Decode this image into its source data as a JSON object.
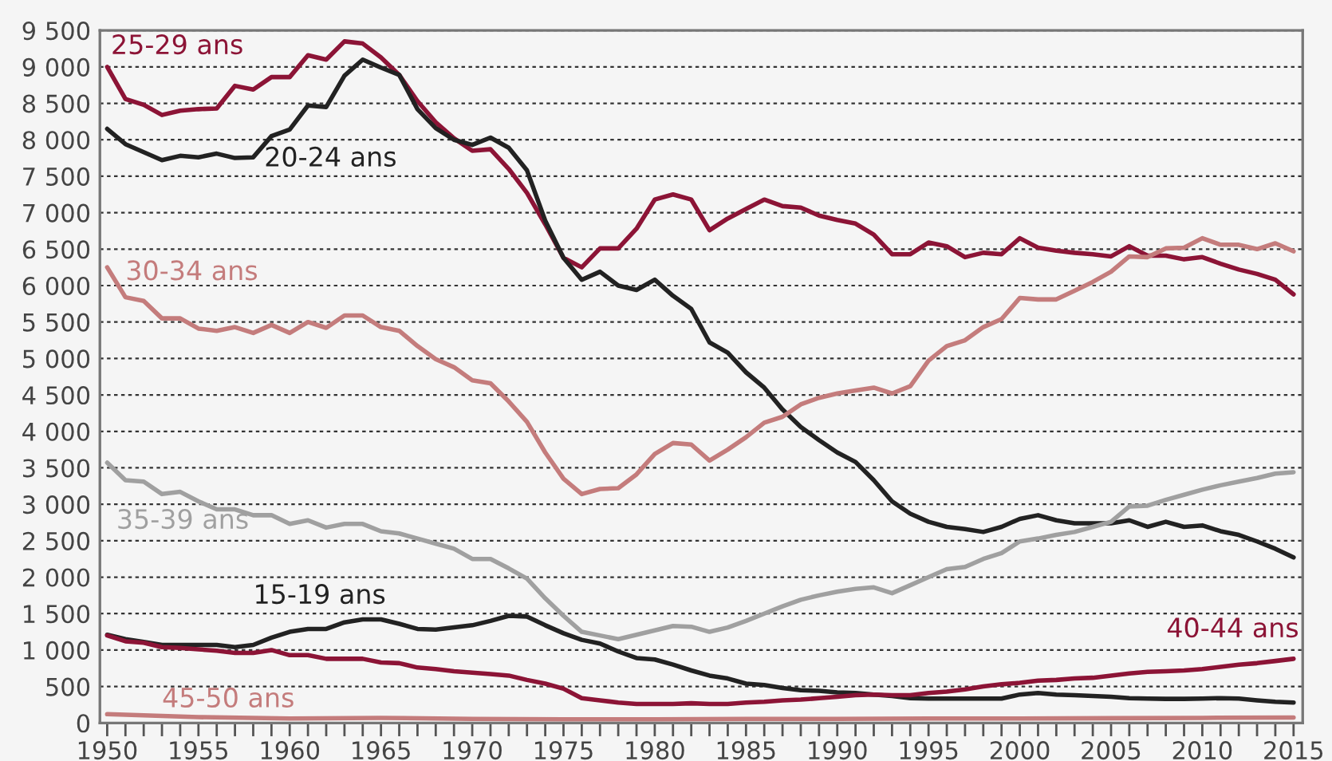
{
  "chart_data": {
    "type": "line",
    "x": [
      1950,
      1951,
      1952,
      1953,
      1954,
      1955,
      1956,
      1957,
      1958,
      1959,
      1960,
      1961,
      1962,
      1963,
      1964,
      1965,
      1966,
      1967,
      1968,
      1969,
      1970,
      1971,
      1972,
      1973,
      1974,
      1975,
      1976,
      1977,
      1978,
      1979,
      1980,
      1981,
      1982,
      1983,
      1984,
      1985,
      1986,
      1987,
      1988,
      1989,
      1990,
      1991,
      1992,
      1993,
      1994,
      1995,
      1996,
      1997,
      1998,
      1999,
      2000,
      2001,
      2002,
      2003,
      2004,
      2005,
      2006,
      2007,
      2008,
      2009,
      2010,
      2011,
      2012,
      2013,
      2014,
      2015
    ],
    "series": [
      {
        "name": "25-29 ans",
        "color": "#8c1436",
        "values": [
          9000,
          8560,
          8480,
          8340,
          8400,
          8420,
          8430,
          8740,
          8690,
          8860,
          8860,
          9160,
          9100,
          9350,
          9320,
          9130,
          8890,
          8530,
          8240,
          8020,
          7850,
          7870,
          7600,
          7270,
          6840,
          6380,
          6250,
          6510,
          6510,
          6780,
          7180,
          7250,
          7180,
          6760,
          6920,
          7050,
          7180,
          7090,
          7070,
          6960,
          6900,
          6850,
          6700,
          6430,
          6430,
          6590,
          6540,
          6390,
          6450,
          6430,
          6650,
          6520,
          6480,
          6450,
          6430,
          6400,
          6540,
          6410,
          6410,
          6360,
          6390,
          6300,
          6220,
          6160,
          6080,
          5880
        ]
      },
      {
        "name": "20-24 ans",
        "color": "#222222",
        "values": [
          8150,
          7940,
          7830,
          7720,
          7780,
          7760,
          7810,
          7750,
          7760,
          8050,
          8140,
          8470,
          8450,
          8880,
          9100,
          8990,
          8890,
          8420,
          8160,
          8000,
          7930,
          8030,
          7890,
          7580,
          6890,
          6380,
          6080,
          6190,
          6000,
          5940,
          6080,
          5860,
          5680,
          5220,
          5080,
          4810,
          4600,
          4300,
          4060,
          3880,
          3710,
          3580,
          3330,
          3040,
          2870,
          2760,
          2690,
          2660,
          2620,
          2690,
          2800,
          2850,
          2780,
          2740,
          2740,
          2740,
          2780,
          2690,
          2760,
          2690,
          2710,
          2630,
          2580,
          2490,
          2390,
          2270
        ]
      },
      {
        "name": "30-34 ans",
        "color": "#c47c7c",
        "values": [
          6250,
          5840,
          5790,
          5550,
          5550,
          5410,
          5380,
          5430,
          5350,
          5460,
          5350,
          5500,
          5420,
          5590,
          5590,
          5430,
          5380,
          5170,
          4990,
          4880,
          4700,
          4660,
          4410,
          4130,
          3710,
          3350,
          3140,
          3210,
          3220,
          3410,
          3690,
          3840,
          3820,
          3600,
          3750,
          3920,
          4120,
          4200,
          4370,
          4460,
          4520,
          4560,
          4600,
          4520,
          4620,
          4970,
          5170,
          5250,
          5430,
          5540,
          5830,
          5810,
          5810,
          5930,
          6050,
          6190,
          6400,
          6390,
          6510,
          6520,
          6650,
          6560,
          6560,
          6500,
          6580,
          6470
        ]
      },
      {
        "name": "35-39 ans",
        "color": "#a0a0a0",
        "values": [
          3570,
          3330,
          3310,
          3140,
          3170,
          3040,
          2930,
          2930,
          2850,
          2850,
          2730,
          2780,
          2680,
          2730,
          2730,
          2630,
          2600,
          2530,
          2460,
          2390,
          2250,
          2250,
          2120,
          1980,
          1710,
          1470,
          1250,
          1200,
          1150,
          1210,
          1270,
          1330,
          1320,
          1250,
          1310,
          1400,
          1500,
          1600,
          1690,
          1750,
          1800,
          1840,
          1860,
          1780,
          1890,
          2000,
          2110,
          2140,
          2250,
          2330,
          2490,
          2530,
          2580,
          2620,
          2690,
          2760,
          2970,
          2980,
          3060,
          3130,
          3200,
          3260,
          3310,
          3360,
          3420,
          3440
        ]
      },
      {
        "name": "15-19 ans",
        "color": "#222222",
        "values": [
          1210,
          1150,
          1110,
          1070,
          1070,
          1070,
          1070,
          1040,
          1070,
          1170,
          1250,
          1290,
          1290,
          1380,
          1420,
          1420,
          1360,
          1290,
          1280,
          1310,
          1340,
          1400,
          1470,
          1460,
          1340,
          1230,
          1140,
          1090,
          980,
          890,
          870,
          800,
          720,
          650,
          610,
          540,
          520,
          480,
          450,
          440,
          420,
          410,
          390,
          370,
          340,
          335,
          335,
          335,
          335,
          335,
          390,
          410,
          390,
          380,
          370,
          360,
          340,
          335,
          330,
          330,
          335,
          340,
          335,
          310,
          290,
          280
        ]
      },
      {
        "name": "40-44 ans",
        "color": "#8c1436",
        "values": [
          1200,
          1120,
          1100,
          1040,
          1030,
          1010,
          990,
          960,
          960,
          1000,
          930,
          930,
          880,
          880,
          880,
          830,
          820,
          760,
          740,
          710,
          690,
          670,
          650,
          590,
          540,
          470,
          340,
          310,
          280,
          260,
          260,
          260,
          270,
          260,
          260,
          280,
          290,
          310,
          320,
          340,
          360,
          380,
          390,
          380,
          380,
          410,
          430,
          460,
          500,
          530,
          550,
          580,
          590,
          610,
          620,
          650,
          680,
          700,
          710,
          720,
          740,
          770,
          800,
          820,
          850,
          880
        ]
      },
      {
        "name": "45-50 ans",
        "color": "#c47c7c",
        "x": [
          1950,
          1955,
          1960,
          1965,
          1970,
          1975,
          1980,
          1985,
          1990,
          1995,
          2000,
          2005,
          2010,
          2015
        ],
        "values": [
          120,
          80,
          60,
          70,
          55,
          50,
          50,
          55,
          55,
          60,
          60,
          65,
          70,
          75
        ]
      }
    ],
    "xlim": [
      1949.6,
      2015.5
    ],
    "xticks": [
      1950,
      {
        "value": 1951,
        "label": null
      },
      {
        "value": 1952,
        "label": null
      },
      {
        "value": 1953,
        "label": null
      },
      {
        "value": 1954,
        "label": null
      },
      1955,
      {
        "value": 1956,
        "label": null
      },
      {
        "value": 1957,
        "label": null
      },
      {
        "value": 1958,
        "label": null
      },
      {
        "value": 1959,
        "label": null
      },
      1960,
      {
        "value": 1961,
        "label": null
      },
      {
        "value": 1962,
        "label": null
      },
      {
        "value": 1963,
        "label": null
      },
      {
        "value": 1964,
        "label": null
      },
      1965,
      {
        "value": 1966,
        "label": null
      },
      {
        "value": 1967,
        "label": null
      },
      {
        "value": 1968,
        "label": null
      },
      {
        "value": 1969,
        "label": null
      },
      1970,
      {
        "value": 1971,
        "label": null
      },
      {
        "value": 1972,
        "label": null
      },
      {
        "value": 1973,
        "label": null
      },
      {
        "value": 1974,
        "label": null
      },
      1975,
      {
        "value": 1976,
        "label": null
      },
      {
        "value": 1977,
        "label": null
      },
      {
        "value": 1978,
        "label": null
      },
      {
        "value": 1979,
        "label": null
      },
      1980,
      {
        "value": 1981,
        "label": null
      },
      {
        "value": 1982,
        "label": null
      },
      {
        "value": 1983,
        "label": null
      },
      {
        "value": 1984,
        "label": null
      },
      1985,
      {
        "value": 1986,
        "label": null
      },
      {
        "value": 1987,
        "label": null
      },
      {
        "value": 1988,
        "label": null
      },
      {
        "value": 1989,
        "label": null
      },
      1990,
      {
        "value": 1991,
        "label": null
      },
      {
        "value": 1992,
        "label": null
      },
      {
        "value": 1993,
        "label": null
      },
      {
        "value": 1994,
        "label": null
      },
      1995,
      {
        "value": 1996,
        "label": null
      },
      {
        "value": 1997,
        "label": null
      },
      {
        "value": 1998,
        "label": null
      },
      {
        "value": 1999,
        "label": null
      },
      2000,
      {
        "value": 2001,
        "label": null
      },
      {
        "value": 2002,
        "label": null
      },
      {
        "value": 2003,
        "label": null
      },
      {
        "value": 2004,
        "label": null
      },
      2005,
      {
        "value": 2006,
        "label": null
      },
      {
        "value": 2007,
        "label": null
      },
      {
        "value": 2008,
        "label": null
      },
      {
        "value": 2009,
        "label": null
      },
      2010,
      {
        "value": 2011,
        "label": null
      },
      {
        "value": 2012,
        "label": null
      },
      {
        "value": 2013,
        "label": null
      },
      {
        "value": 2014,
        "label": null
      },
      2015
    ],
    "ylim": [
      0,
      9500
    ],
    "yticks": [
      0,
      500,
      {
        "value": 1000,
        "label": "1 000"
      },
      {
        "value": 1500,
        "label": "1 500"
      },
      {
        "value": 2000,
        "label": "2 000"
      },
      {
        "value": 2500,
        "label": "2 500"
      },
      {
        "value": 3000,
        "label": "3 000"
      },
      {
        "value": 3500,
        "label": "3 500"
      },
      {
        "value": 4000,
        "label": "4 000"
      },
      {
        "value": 4500,
        "label": "4 500"
      },
      {
        "value": 5000,
        "label": "5 000"
      },
      {
        "value": 5500,
        "label": "5 500"
      },
      {
        "value": 6000,
        "label": "6 000"
      },
      {
        "value": 6500,
        "label": "6 500"
      },
      {
        "value": 7000,
        "label": "7 000"
      },
      {
        "value": 7500,
        "label": "7 500"
      },
      {
        "value": 8000,
        "label": "8 000"
      },
      {
        "value": 8500,
        "label": "8 500"
      },
      {
        "value": 9000,
        "label": "9 000"
      },
      {
        "value": 9500,
        "label": "9 500"
      }
    ],
    "grid": "y",
    "legend": false,
    "marker": "none",
    "line_style": "solid"
  }
}
